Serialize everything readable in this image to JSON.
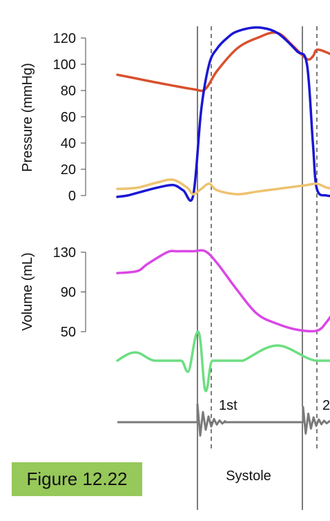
{
  "figure_label": "Figure 12.22",
  "chart_data": [
    {
      "type": "line",
      "title": "",
      "ylabel": "Pressure (mmHg)",
      "ylim": [
        0,
        120
      ],
      "yticks": [
        "0",
        "20",
        "40",
        "60",
        "80",
        "100",
        "120"
      ],
      "time_range": [
        0,
        1
      ],
      "series": [
        {
          "name": "",
          "color": "#d9502e",
          "x": [
            0.0,
            0.1,
            0.2,
            0.38,
            0.44,
            0.5,
            0.6,
            0.7,
            0.8,
            0.88,
            0.95,
            0.98,
            1.0,
            1.05,
            1.1
          ],
          "y": [
            92,
            89,
            86,
            81,
            81,
            95,
            112,
            120,
            124,
            114,
            104,
            106,
            111,
            109,
            105
          ]
        },
        {
          "name": "",
          "color": "#1a16d4",
          "x": [
            0.0,
            0.05,
            0.1,
            0.2,
            0.28,
            0.33,
            0.38,
            0.42,
            0.46,
            0.5,
            0.55,
            0.6,
            0.7,
            0.8,
            0.9,
            0.95,
            0.98,
            1.0,
            1.05,
            1.1
          ],
          "y": [
            -1,
            0,
            2,
            6,
            8,
            4,
            0,
            65,
            100,
            112,
            120,
            125,
            128,
            124,
            110,
            100,
            40,
            5,
            0,
            0
          ]
        },
        {
          "name": "",
          "color": "#eec270",
          "x": [
            0.0,
            0.1,
            0.2,
            0.28,
            0.35,
            0.38,
            0.42,
            0.46,
            0.5,
            0.6,
            0.7,
            0.8,
            0.9,
            0.95,
            1.0,
            1.05,
            1.1
          ],
          "y": [
            5,
            6,
            10,
            12,
            6,
            1,
            5,
            9,
            4,
            1,
            3,
            5,
            7,
            8,
            9,
            6,
            5
          ]
        }
      ]
    },
    {
      "type": "line",
      "title": "",
      "ylabel": "Volume (mL)",
      "ylim": [
        50,
        130
      ],
      "yticks": [
        "50",
        "90",
        "130"
      ],
      "time_range": [
        0,
        1
      ],
      "series": [
        {
          "name": "",
          "color": "#da47e6",
          "x": [
            0.0,
            0.1,
            0.15,
            0.25,
            0.3,
            0.38,
            0.44,
            0.5,
            0.6,
            0.7,
            0.8,
            0.9,
            1.0,
            1.05,
            1.1
          ],
          "y": [
            109,
            111,
            118,
            130,
            131,
            131,
            131,
            119,
            92,
            68,
            58,
            52,
            51,
            60,
            75
          ]
        }
      ]
    }
  ],
  "traces": {
    "ecg_color": "#6dde82",
    "sound_color": "#7a7a7a",
    "first_sound_label": "1st",
    "second_sound_label": "2",
    "systole_label": "Systole"
  }
}
